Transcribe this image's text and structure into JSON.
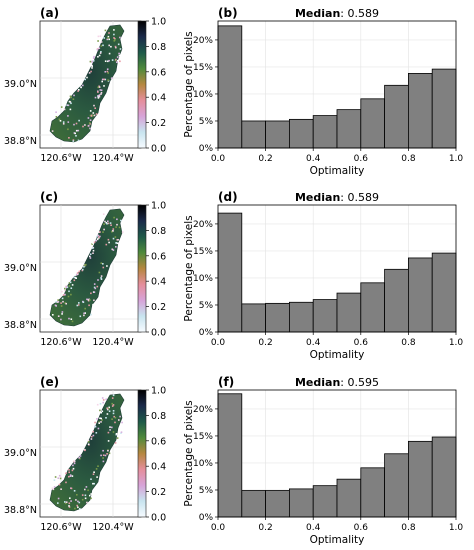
{
  "colorbar": {
    "ticks": [
      "0.0",
      "0.2",
      "0.4",
      "0.6",
      "0.8",
      "1.0"
    ],
    "stops": [
      "#f7fbff",
      "#c8e4ef",
      "#d7a3d8",
      "#e58e9b",
      "#b5873f",
      "#4f8a3c",
      "#1e5a49",
      "#1a2a4a",
      "#000000"
    ]
  },
  "map": {
    "lat_labels": [
      "39.0°N",
      "38.8°N"
    ],
    "lon_labels": [
      "120.6°W",
      "120.4°W"
    ]
  },
  "panels": [
    {
      "map_label": "(a)",
      "hist_label": "(b)",
      "median_label": "Median",
      "median_value": ": 0.589"
    },
    {
      "map_label": "(c)",
      "hist_label": "(d)",
      "median_label": "Median",
      "median_value": ": 0.589"
    },
    {
      "map_label": "(e)",
      "hist_label": "(f)",
      "median_label": "Median",
      "median_value": ": 0.595"
    }
  ],
  "chart_data": [
    {
      "type": "bar",
      "title": "Median: 0.589",
      "xlabel": "Optimality",
      "ylabel": "Percentage of pixels",
      "xlim": [
        0.0,
        1.0
      ],
      "ylim": [
        0,
        23.5
      ],
      "x_ticks": [
        "0.0",
        "0.2",
        "0.4",
        "0.6",
        "0.8",
        "1.0"
      ],
      "y_ticks": [
        "0%",
        "5%",
        "10%",
        "15%",
        "20%"
      ],
      "bin_edges": [
        0.0,
        0.1,
        0.2,
        0.3,
        0.4,
        0.5,
        0.6,
        0.7,
        0.8,
        0.9,
        1.0
      ],
      "values": [
        22.6,
        5.0,
        5.0,
        5.3,
        6.0,
        7.1,
        9.1,
        11.6,
        13.8,
        14.6
      ],
      "bar_color": "#808080",
      "grid": true
    },
    {
      "type": "bar",
      "title": "Median: 0.589",
      "xlabel": "Optimality",
      "ylabel": "Percentage of pixels",
      "xlim": [
        0.0,
        1.0
      ],
      "ylim": [
        0,
        23.5
      ],
      "x_ticks": [
        "0.0",
        "0.2",
        "0.4",
        "0.6",
        "0.8",
        "1.0"
      ],
      "y_ticks": [
        "0%",
        "5%",
        "10%",
        "15%",
        "20%"
      ],
      "bin_edges": [
        0.0,
        0.1,
        0.2,
        0.3,
        0.4,
        0.5,
        0.6,
        0.7,
        0.8,
        0.9,
        1.0
      ],
      "values": [
        22.0,
        5.2,
        5.3,
        5.5,
        6.0,
        7.2,
        9.1,
        11.6,
        13.7,
        14.6
      ],
      "bar_color": "#808080",
      "grid": true
    },
    {
      "type": "bar",
      "title": "Median: 0.595",
      "xlabel": "Optimality",
      "ylabel": "Percentage of pixels",
      "xlim": [
        0.0,
        1.0
      ],
      "ylim": [
        0,
        23.5
      ],
      "x_ticks": [
        "0.0",
        "0.2",
        "0.4",
        "0.6",
        "0.8",
        "1.0"
      ],
      "y_ticks": [
        "0%",
        "5%",
        "10%",
        "15%",
        "20%"
      ],
      "bin_edges": [
        0.0,
        0.1,
        0.2,
        0.3,
        0.4,
        0.5,
        0.6,
        0.7,
        0.8,
        0.9,
        1.0
      ],
      "values": [
        22.8,
        4.9,
        4.9,
        5.2,
        5.8,
        7.0,
        9.1,
        11.7,
        14.0,
        14.8
      ],
      "bar_color": "#808080",
      "grid": true
    }
  ]
}
